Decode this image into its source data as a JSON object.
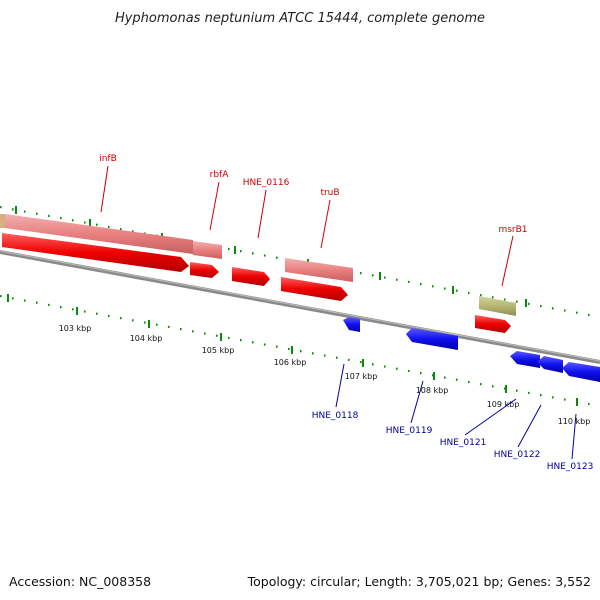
{
  "title": "Hyphomonas neptunium ATCC 15444, complete genome",
  "footer": {
    "accession": "Accession: NC_008358",
    "summary": "Topology: circular; Length: 3,705,021 bp; Genes: 3,552"
  },
  "kbp_labels": [
    "103 kbp",
    "104 kbp",
    "105 kbp",
    "106 kbp",
    "107 kbp",
    "108 kbp",
    "109 kbp",
    "110 kbp"
  ],
  "forward_genes": [
    "infB",
    "rbfA",
    "HNE_0116",
    "truB",
    "msrB1"
  ],
  "reverse_genes": [
    "HNE_0118",
    "HNE_0119",
    "HNE_0121",
    "HNE_0122",
    "HNE_0123"
  ],
  "colors": {
    "forward_cds": "#ee0000",
    "forward_gene": "#ee8888",
    "reverse_cds": "#1010ee",
    "other_feature": "#b5b574",
    "tick": "#0a8a0a",
    "backbone": "#8a8a8a"
  }
}
